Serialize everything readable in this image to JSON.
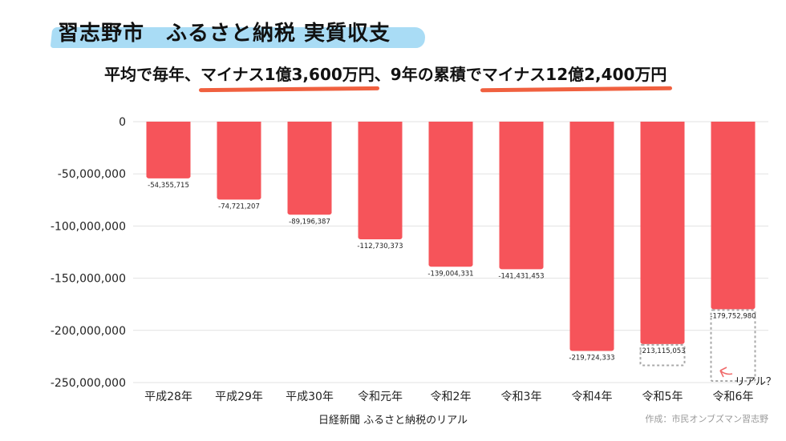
{
  "header": {
    "title": "習志野市　ふるさと納税 実質収支",
    "subtitle": {
      "part1": "平均で毎年、",
      "part2": "マイナス1億3,600万円",
      "part3": "、9年の累積で",
      "part4": "マイナス12億2,400万円"
    },
    "highlight_color": "#a9dcf5",
    "underline_color": "#f0603f"
  },
  "chart_data": {
    "type": "bar",
    "categories": [
      "平成28年",
      "平成29年",
      "平成30年",
      "令和元年",
      "令和2年",
      "令和3年",
      "令和4年",
      "令和5年",
      "令和6年"
    ],
    "values": [
      -54355715,
      -74721207,
      -89196387,
      -112730373,
      -139004331,
      -141431453,
      -219724333,
      -213115053,
      -179752980
    ],
    "value_labels": [
      "-54,355,715",
      "-74,721,207",
      "-89,196,387",
      "-112,730,373",
      "-139,004,331",
      "-141,431,453",
      "-219,724,333",
      "-213,115,053",
      "-179,752,980"
    ],
    "y_ticks": [
      0,
      -50000000,
      -100000000,
      -150000000,
      -200000000,
      -250000000
    ],
    "y_tick_labels": [
      "0",
      "-50,000,000",
      "-100,000,000",
      "-150,000,000",
      "-200,000,000",
      "-250,000,000"
    ],
    "ylim": [
      -250000000,
      0
    ],
    "grid": true,
    "bar_color": "#f6545a",
    "dotted_outlines": [
      {
        "category": "令和5年",
        "value": -235000000
      },
      {
        "category": "令和6年",
        "value": -250000000
      }
    ],
    "annotation": {
      "text": "リアル？",
      "color": "#f06a6a"
    }
  },
  "footer": {
    "source": "日経新聞 ふるさと納税のリアル",
    "credit": "作成：市民オンブズマン習志野"
  }
}
